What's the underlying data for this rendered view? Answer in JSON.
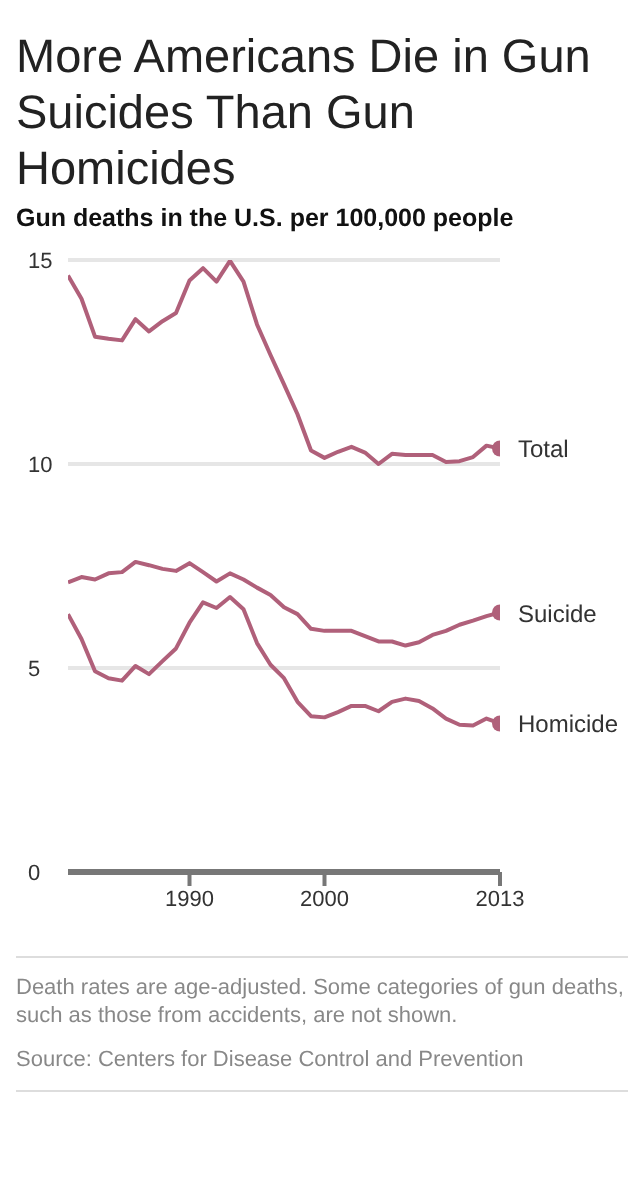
{
  "chart_data": {
    "type": "line",
    "title": "More Americans Die in Gun Suicides Than Gun Homicides",
    "subtitle": "Gun deaths in the U.S. per 100,000 people",
    "x": [
      1981,
      1982,
      1983,
      1984,
      1985,
      1986,
      1987,
      1988,
      1989,
      1990,
      1991,
      1992,
      1993,
      1994,
      1995,
      1996,
      1997,
      1998,
      1999,
      2000,
      2001,
      2002,
      2003,
      2004,
      2005,
      2006,
      2007,
      2008,
      2009,
      2010,
      2011,
      2012,
      2013
    ],
    "series": [
      {
        "name": "Total",
        "color": "#b0607a",
        "values": [
          14.62,
          14.05,
          13.12,
          13.07,
          13.03,
          13.55,
          13.25,
          13.5,
          13.7,
          14.5,
          14.8,
          14.47,
          14.98,
          14.47,
          13.42,
          12.67,
          11.95,
          11.22,
          10.33,
          10.15,
          10.3,
          10.42,
          10.28,
          10.0,
          10.25,
          10.22,
          10.22,
          10.22,
          10.05,
          10.07,
          10.17,
          10.45,
          10.38
        ]
      },
      {
        "name": "Suicide",
        "color": "#b0607a",
        "values": [
          7.1,
          7.23,
          7.17,
          7.32,
          7.35,
          7.6,
          7.52,
          7.43,
          7.38,
          7.57,
          7.35,
          7.12,
          7.32,
          7.17,
          6.97,
          6.79,
          6.49,
          6.32,
          5.96,
          5.91,
          5.91,
          5.91,
          5.78,
          5.65,
          5.65,
          5.55,
          5.63,
          5.81,
          5.91,
          6.06,
          6.16,
          6.27,
          6.36
        ]
      },
      {
        "name": "Homicide",
        "color": "#b0607a",
        "values": [
          6.32,
          5.71,
          4.92,
          4.75,
          4.69,
          5.05,
          4.85,
          5.17,
          5.48,
          6.11,
          6.61,
          6.47,
          6.74,
          6.44,
          5.61,
          5.08,
          4.75,
          4.17,
          3.82,
          3.79,
          3.92,
          4.07,
          4.07,
          3.94,
          4.17,
          4.25,
          4.19,
          4.01,
          3.76,
          3.61,
          3.59,
          3.76,
          3.64
        ]
      }
    ],
    "xlim": [
      1981,
      2013
    ],
    "xticks": [
      1990,
      2000,
      2013
    ],
    "ylim": [
      0,
      15
    ],
    "yticks": [
      0,
      5,
      10,
      15
    ],
    "grid": "y",
    "marker": "none",
    "line_style": "solid",
    "annotations": [
      "Death rates are age-adjusted. Some categories of gun deaths, such as those from accidents, are not shown.",
      "Source: Centers for Disease Control and Prevention"
    ]
  }
}
